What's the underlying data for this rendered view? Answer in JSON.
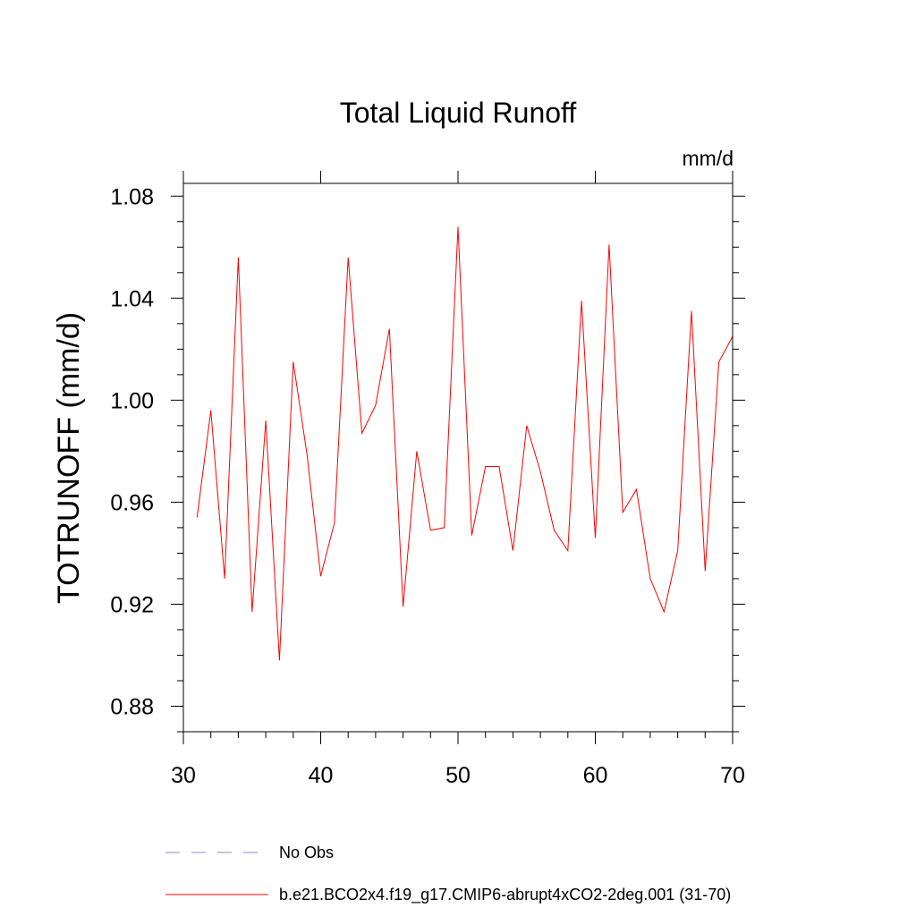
{
  "chart_data": {
    "type": "line",
    "title": "Total Liquid Runoff",
    "units_label": "mm/d",
    "ylabel": "TOTRUNOFF  (mm/d)",
    "xlabel": "",
    "xlim": [
      30,
      70
    ],
    "ylim": [
      0.87,
      1.085
    ],
    "x_ticks": [
      30,
      40,
      50,
      60,
      70
    ],
    "x_tick_labels": [
      "30",
      "40",
      "50",
      "60",
      "70"
    ],
    "y_ticks": [
      0.88,
      0.92,
      0.96,
      1.0,
      1.04,
      1.08
    ],
    "y_tick_labels": [
      "0.88",
      "0.92",
      "0.96",
      "1.00",
      "1.04",
      "1.08"
    ],
    "grid": false,
    "legend": [
      {
        "label": "No Obs",
        "color": "#8a8acb",
        "dashed": true
      },
      {
        "label": "b.e21.BCO2x4.f19_g17.CMIP6-abrupt4xCO2-2deg.001 (31-70)",
        "color": "#ff0000",
        "dashed": false
      }
    ],
    "series": [
      {
        "color": "#ff0000",
        "x": [
          31,
          32,
          33,
          34,
          35,
          36,
          37,
          38,
          39,
          40,
          41,
          42,
          43,
          44,
          45,
          46,
          47,
          48,
          49,
          50,
          51,
          52,
          53,
          54,
          55,
          56,
          57,
          58,
          59,
          60,
          61,
          62,
          63,
          64,
          65,
          66,
          67,
          68,
          69,
          70
        ],
        "values": [
          0.954,
          0.996,
          0.93,
          1.056,
          0.917,
          0.992,
          0.898,
          1.015,
          0.979,
          0.931,
          0.952,
          1.056,
          0.987,
          0.998,
          1.028,
          0.919,
          0.98,
          0.949,
          0.95,
          1.068,
          0.947,
          0.974,
          0.974,
          0.941,
          0.99,
          0.972,
          0.949,
          0.941,
          1.039,
          0.946,
          1.061,
          0.956,
          0.965,
          0.93,
          0.917,
          0.941,
          1.035,
          0.933,
          1.015,
          1.025
        ]
      }
    ]
  }
}
